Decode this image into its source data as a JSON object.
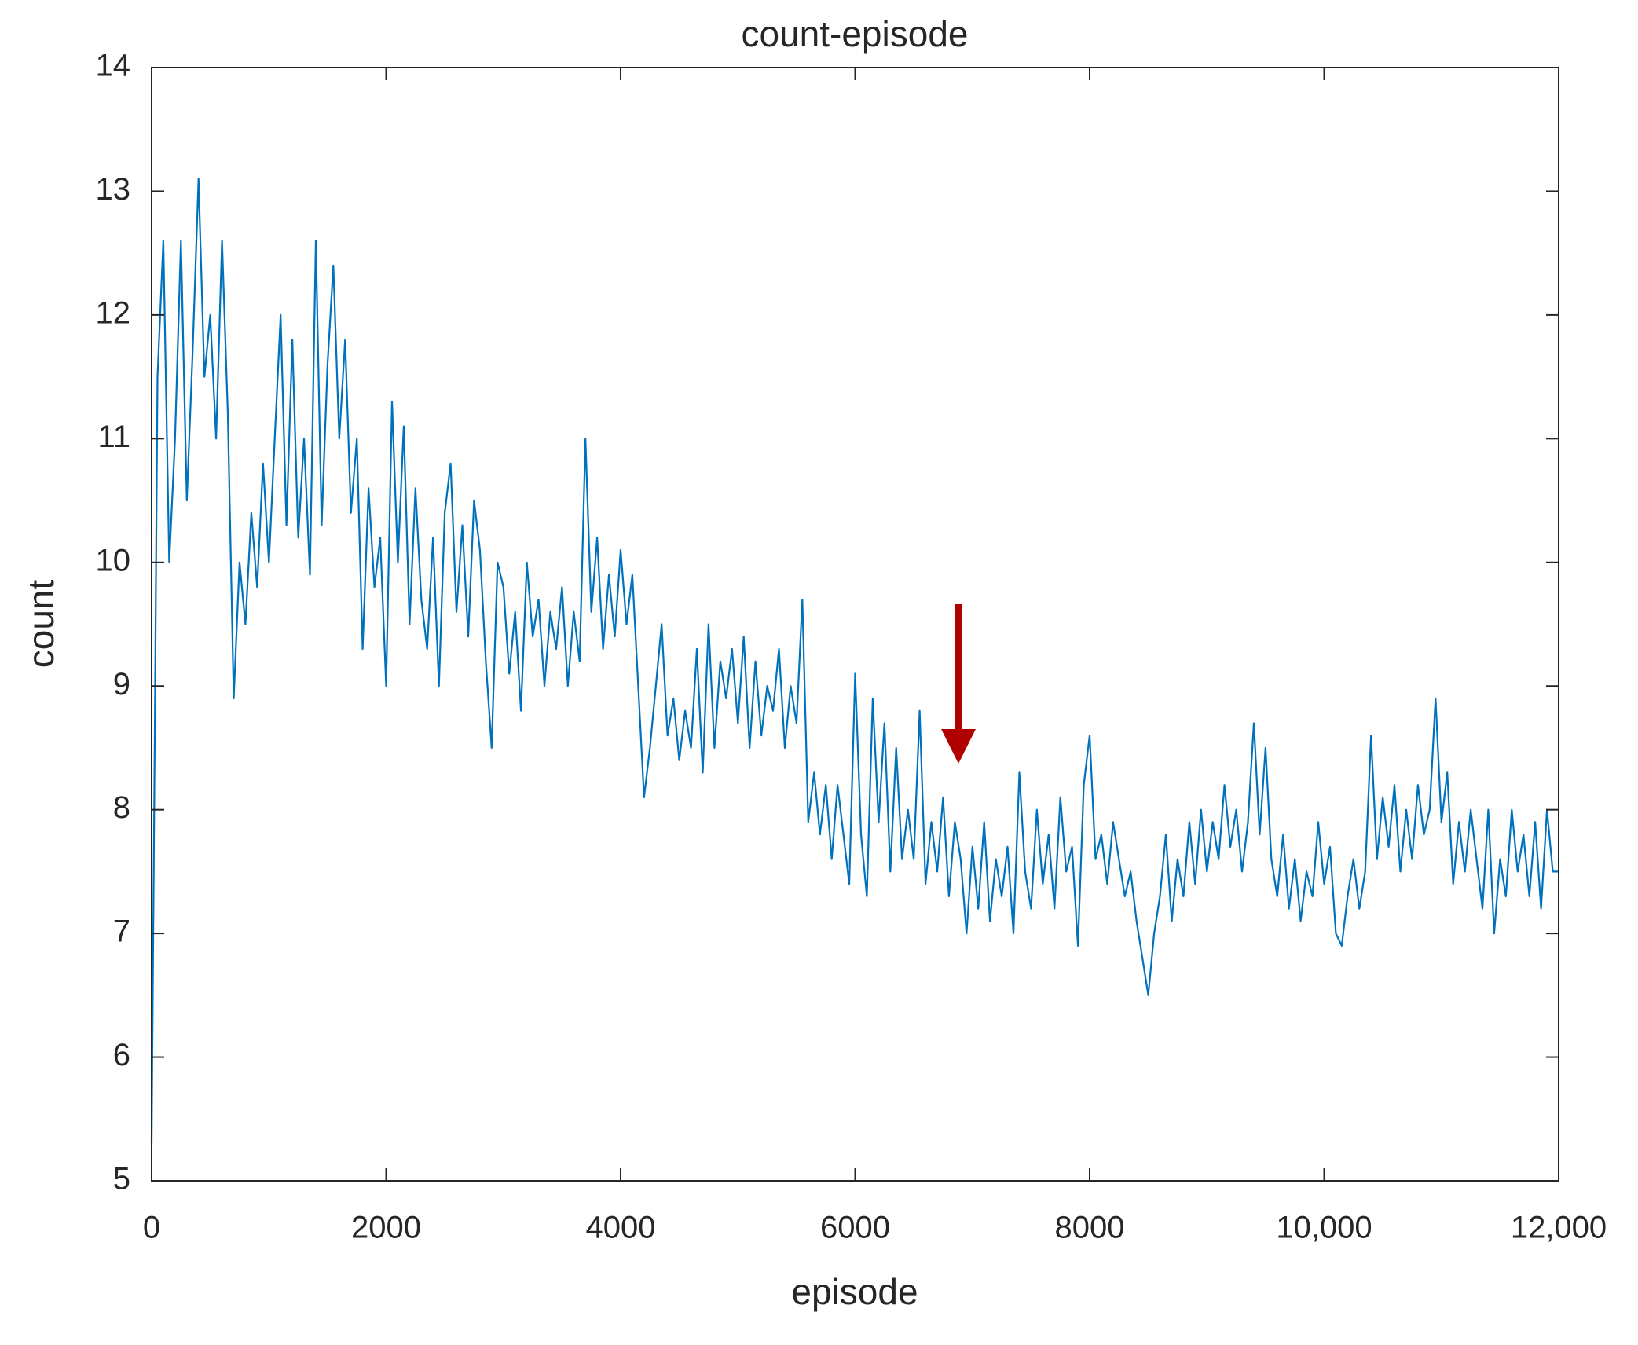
{
  "chart_data": {
    "type": "line",
    "title": "count-episode",
    "x_label": "episode",
    "y_label": "count",
    "xlim": [
      0,
      12000
    ],
    "ylim": [
      5,
      14
    ],
    "xticks": [
      0,
      2000,
      4000,
      6000,
      8000,
      {
        "value": 10000,
        "label": "10,000"
      },
      {
        "value": 12000,
        "label": "12,000"
      }
    ],
    "yticks": [
      5,
      6,
      7,
      8,
      9,
      10,
      11,
      12,
      13,
      14
    ],
    "grid": false,
    "series": [
      {
        "name": "count",
        "color": "#0072bd",
        "x": [
          0,
          50,
          100,
          150,
          200,
          250,
          300,
          350,
          400,
          450,
          500,
          550,
          600,
          650,
          700,
          750,
          800,
          850,
          900,
          950,
          1000,
          1050,
          1100,
          1150,
          1200,
          1250,
          1300,
          1350,
          1400,
          1450,
          1500,
          1550,
          1600,
          1650,
          1700,
          1750,
          1800,
          1850,
          1900,
          1950,
          2000,
          2050,
          2100,
          2150,
          2200,
          2250,
          2300,
          2350,
          2400,
          2450,
          2500,
          2550,
          2600,
          2650,
          2700,
          2750,
          2800,
          2850,
          2900,
          2950,
          3000,
          3050,
          3100,
          3150,
          3200,
          3250,
          3300,
          3350,
          3400,
          3450,
          3500,
          3550,
          3600,
          3650,
          3700,
          3750,
          3800,
          3850,
          3900,
          3950,
          4000,
          4050,
          4100,
          4150,
          4200,
          4250,
          4300,
          4350,
          4400,
          4450,
          4500,
          4550,
          4600,
          4650,
          4700,
          4750,
          4800,
          4850,
          4900,
          4950,
          5000,
          5050,
          5100,
          5150,
          5200,
          5250,
          5300,
          5350,
          5400,
          5450,
          5500,
          5550,
          5600,
          5650,
          5700,
          5750,
          5800,
          5850,
          5900,
          5950,
          6000,
          6050,
          6100,
          6150,
          6200,
          6250,
          6300,
          6350,
          6400,
          6450,
          6500,
          6550,
          6600,
          6650,
          6700,
          6750,
          6800,
          6850,
          6900,
          6950,
          7000,
          7050,
          7100,
          7150,
          7200,
          7250,
          7300,
          7350,
          7400,
          7450,
          7500,
          7550,
          7600,
          7650,
          7700,
          7750,
          7800,
          7850,
          7900,
          7950,
          8000,
          8050,
          8100,
          8150,
          8200,
          8250,
          8300,
          8350,
          8400,
          8450,
          8500,
          8550,
          8600,
          8650,
          8700,
          8750,
          8800,
          8850,
          8900,
          8950,
          9000,
          9050,
          9100,
          9150,
          9200,
          9250,
          9300,
          9350,
          9400,
          9450,
          9500,
          9550,
          9600,
          9650,
          9700,
          9750,
          9800,
          9850,
          9900,
          9950,
          10000,
          10050,
          10100,
          10150,
          10200,
          10250,
          10300,
          10350,
          10400,
          10450,
          10500,
          10550,
          10600,
          10650,
          10700,
          10750,
          10800,
          10850,
          10900,
          10950,
          11000,
          11050,
          11100,
          11150,
          11200,
          11250,
          11300,
          11350,
          11400,
          11450,
          11500,
          11550,
          11600,
          11650,
          11700,
          11750,
          11800,
          11850,
          11900,
          11950,
          12000
        ],
        "values": [
          5.3,
          11.5,
          12.6,
          10.0,
          11.0,
          12.6,
          10.5,
          11.7,
          13.1,
          11.5,
          12.0,
          11.0,
          12.6,
          11.2,
          8.9,
          10.0,
          9.5,
          10.4,
          9.8,
          10.8,
          10.0,
          11.0,
          12.0,
          10.3,
          11.8,
          10.2,
          11.0,
          9.9,
          12.6,
          10.3,
          11.6,
          12.4,
          11.0,
          11.8,
          10.4,
          11.0,
          9.3,
          10.6,
          9.8,
          10.2,
          9.0,
          11.3,
          10.0,
          11.1,
          9.5,
          10.6,
          9.7,
          9.3,
          10.2,
          9.0,
          10.4,
          10.8,
          9.6,
          10.3,
          9.4,
          10.5,
          10.1,
          9.2,
          8.5,
          10.0,
          9.8,
          9.1,
          9.6,
          8.8,
          10.0,
          9.4,
          9.7,
          9.0,
          9.6,
          9.3,
          9.8,
          9.0,
          9.6,
          9.2,
          11.0,
          9.6,
          10.2,
          9.3,
          9.9,
          9.4,
          10.1,
          9.5,
          9.9,
          9.0,
          8.1,
          8.5,
          9.0,
          9.5,
          8.6,
          8.9,
          8.4,
          8.8,
          8.5,
          9.3,
          8.3,
          9.5,
          8.5,
          9.2,
          8.9,
          9.3,
          8.7,
          9.4,
          8.5,
          9.2,
          8.6,
          9.0,
          8.8,
          9.3,
          8.5,
          9.0,
          8.7,
          9.7,
          7.9,
          8.3,
          7.8,
          8.2,
          7.6,
          8.2,
          7.8,
          7.4,
          9.1,
          7.8,
          7.3,
          8.9,
          7.9,
          8.7,
          7.5,
          8.5,
          7.6,
          8.0,
          7.6,
          8.8,
          7.4,
          7.9,
          7.5,
          8.1,
          7.3,
          7.9,
          7.6,
          7.0,
          7.7,
          7.2,
          7.9,
          7.1,
          7.6,
          7.3,
          7.7,
          7.0,
          8.3,
          7.5,
          7.2,
          8.0,
          7.4,
          7.8,
          7.2,
          8.1,
          7.5,
          7.7,
          6.9,
          8.2,
          8.6,
          7.6,
          7.8,
          7.4,
          7.9,
          7.6,
          7.3,
          7.5,
          7.1,
          6.8,
          6.5,
          7.0,
          7.3,
          7.8,
          7.1,
          7.6,
          7.3,
          7.9,
          7.4,
          8.0,
          7.5,
          7.9,
          7.6,
          8.2,
          7.7,
          8.0,
          7.5,
          7.9,
          8.7,
          7.8,
          8.5,
          7.6,
          7.3,
          7.8,
          7.2,
          7.6,
          7.1,
          7.5,
          7.3,
          7.9,
          7.4,
          7.7,
          7.0,
          6.9,
          7.3,
          7.6,
          7.2,
          7.5,
          8.6,
          7.6,
          8.1,
          7.7,
          8.2,
          7.5,
          8.0,
          7.6,
          8.2,
          7.8,
          8.0,
          8.9,
          7.9,
          8.3,
          7.4,
          7.9,
          7.5,
          8.0,
          7.6,
          7.2,
          8.0,
          7.0,
          7.6,
          7.3,
          8.0,
          7.5,
          7.8,
          7.3,
          7.9,
          7.2,
          8.0,
          7.5,
          7.5
        ]
      }
    ]
  }
}
